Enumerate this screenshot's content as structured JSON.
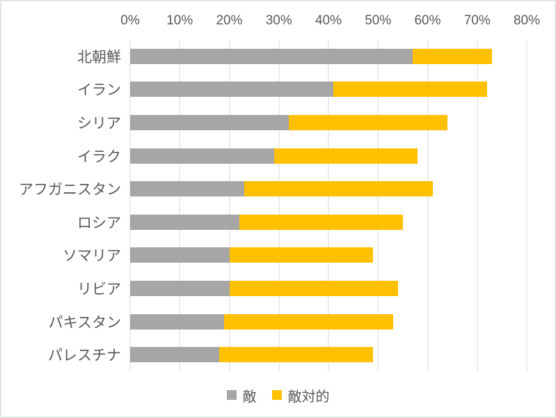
{
  "chart_data": {
    "type": "bar",
    "orientation": "horizontal",
    "stacked": true,
    "title": "",
    "categories": [
      "北朝鮮",
      "イラン",
      "シリア",
      "イラク",
      "アフガニスタン",
      "ロシア",
      "ソマリア",
      "リビア",
      "パキスタン",
      "パレスチナ"
    ],
    "series": [
      {
        "name": "敵",
        "color": "#a6a6a6",
        "values": [
          57,
          41,
          32,
          29,
          23,
          22,
          20,
          20,
          19,
          18
        ]
      },
      {
        "name": "敵対的",
        "color": "#ffc000",
        "values": [
          16,
          31,
          32,
          29,
          38,
          33,
          29,
          34,
          34,
          31
        ]
      }
    ],
    "totals": [
      73,
      72,
      64,
      58,
      61,
      55,
      49,
      54,
      53,
      49
    ],
    "x_axis": {
      "position": "top",
      "min": 0,
      "max": 80,
      "tick_step": 10,
      "ticks": [
        "0%",
        "10%",
        "20%",
        "30%",
        "40%",
        "50%",
        "60%",
        "70%",
        "80%"
      ]
    },
    "grid": true,
    "legend": {
      "position": "bottom",
      "entries": [
        "敵",
        "敵対的"
      ]
    }
  },
  "colors": {
    "series_gray": "#a6a6a6",
    "series_yellow": "#ffc000",
    "gridline": "#d9d9d9",
    "text": "#595959",
    "frame_border": "#e4e4e4",
    "background": "#ffffff"
  }
}
